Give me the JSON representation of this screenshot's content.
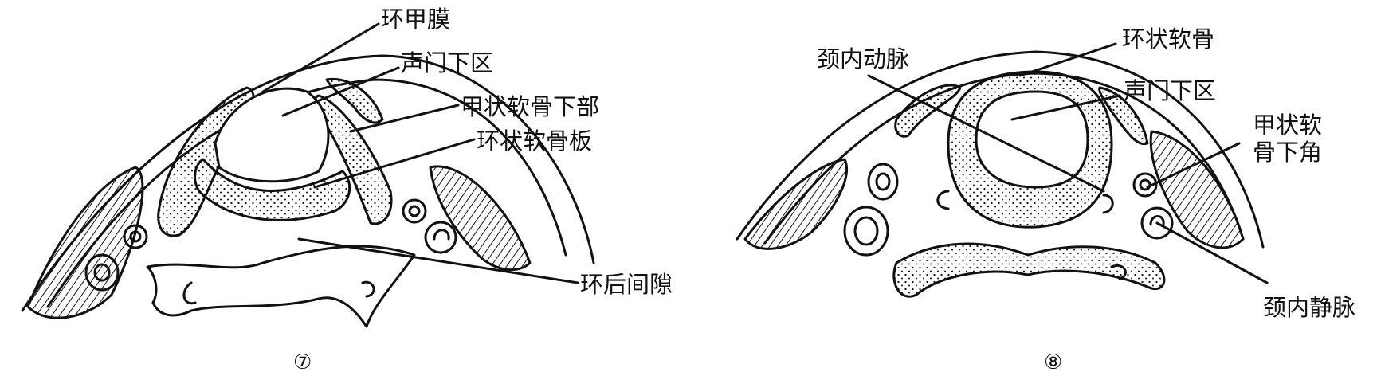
{
  "panel_7": {
    "label_1": "环甲膜",
    "label_2": "声门下区",
    "label_3": "甲状软骨下部",
    "label_4": "环状软骨板",
    "label_5": "环后间隙",
    "caption": "⑦"
  },
  "panel_8": {
    "label_1": "颈内动脉",
    "label_2": "环状软骨",
    "label_3": "声门下区",
    "label_4": "甲状软骨下角",
    "label_5": "颈内静脉",
    "caption": "⑧"
  },
  "colors": {
    "ink": "#111111",
    "paper": "#ffffff"
  }
}
